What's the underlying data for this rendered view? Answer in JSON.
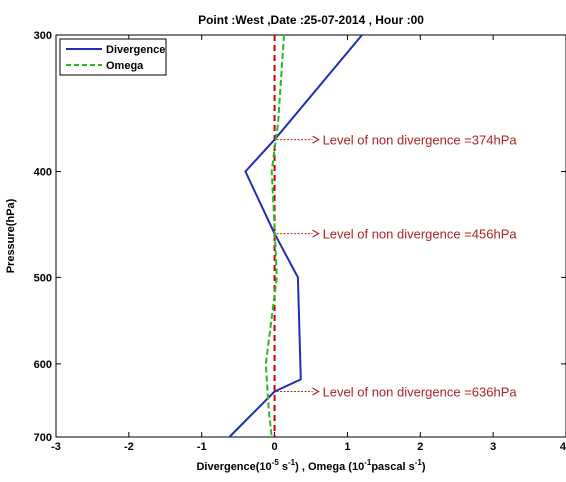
{
  "chart_data": {
    "type": "line",
    "title": "Point :West  ,Date :25-07-2014 , Hour :00",
    "xlabel_parts": {
      "a": "Divergence(10",
      "a_exp": "-5",
      "b": " s",
      "b_exp": "-1",
      "c": ") , Omega (10",
      "c_exp": "-1",
      "d": "pascal s",
      "d_exp": "-1",
      "e": ")"
    },
    "ylabel": "Pressure(hPa)",
    "xlim": [
      -3,
      4
    ],
    "ylim": [
      300,
      700
    ],
    "y_reversed": true,
    "y_scale": "log",
    "xticks": [
      -3,
      -2,
      -1,
      0,
      1,
      2,
      3,
      4
    ],
    "xtick_labels": [
      "-3",
      "-2",
      "-1",
      "0",
      "1",
      "2",
      "3",
      "4"
    ],
    "yticks": [
      300,
      400,
      500,
      600,
      700
    ],
    "ytick_labels": [
      "300",
      "400",
      "500",
      "600",
      "700"
    ],
    "grid": false,
    "legend_position": "top-left",
    "series": [
      {
        "name": "Divergence",
        "color": "#1f2fb5",
        "style": "solid",
        "points": [
          [
            1.2,
            300
          ],
          [
            0.0,
            374
          ],
          [
            -0.4,
            400
          ],
          [
            0.0,
            456
          ],
          [
            0.32,
            500
          ],
          [
            0.36,
            620
          ],
          [
            0.0,
            636
          ],
          [
            -0.62,
            700
          ]
        ]
      },
      {
        "name": "Omega",
        "color": "#22bb22",
        "style": "dashed",
        "points": [
          [
            0.13,
            300
          ],
          [
            0.05,
            360
          ],
          [
            -0.04,
            400
          ],
          [
            0.0,
            450
          ],
          [
            0.03,
            500
          ],
          [
            -0.12,
            600
          ],
          [
            -0.08,
            660
          ],
          [
            -0.04,
            700
          ]
        ]
      }
    ],
    "reference_line": {
      "x": 0,
      "color": "#cc0000",
      "style": "dashed"
    },
    "annotations": [
      {
        "text": "Level of non divergence =374hPa",
        "x": 0,
        "y": 374,
        "color": "#b22222"
      },
      {
        "text": "Level of non divergence =456hPa",
        "x": 0,
        "y": 456,
        "color": "#b22222"
      },
      {
        "text": "Level of non divergence =636hPa",
        "x": 0,
        "y": 636,
        "color": "#b22222"
      }
    ]
  }
}
